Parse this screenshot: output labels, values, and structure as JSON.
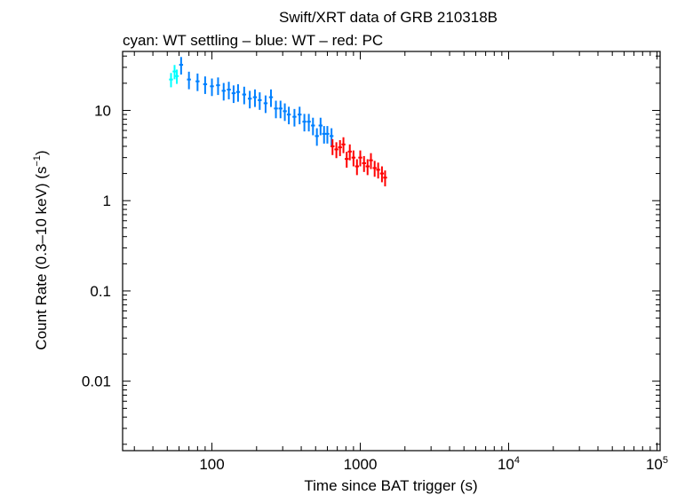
{
  "chart_data": {
    "type": "scatter",
    "title": "Swift/XRT data of GRB 210318B",
    "subtitle": "cyan: WT settling – blue: WT – red: PC",
    "xlabel": "Time since BAT trigger (s)",
    "ylabel_main": "Count Rate (0.3–10 keV) (s",
    "ylabel_sup": "−1",
    "ylabel_tail": ")",
    "xscale": "log",
    "yscale": "log",
    "xlim": [
      25,
      105000
    ],
    "ylim": [
      0.0017,
      45
    ],
    "x_ticks": [
      {
        "value": 100,
        "label": "100",
        "sup": ""
      },
      {
        "value": 1000,
        "label": "1000",
        "sup": ""
      },
      {
        "value": 10000,
        "label": "10",
        "sup": "4"
      },
      {
        "value": 100000,
        "label": "10",
        "sup": "5"
      }
    ],
    "y_ticks": [
      {
        "value": 10,
        "label": "10"
      },
      {
        "value": 1,
        "label": "1"
      },
      {
        "value": 0.1,
        "label": "0.1"
      },
      {
        "value": 0.01,
        "label": "0.01"
      }
    ],
    "grid": false,
    "series": [
      {
        "color": "#00ffff",
        "segments": [
          {
            "x": [
              53,
              56,
              58
            ],
            "y": [
              22,
              27,
              24
            ]
          }
        ],
        "rel_err": 0.18
      },
      {
        "color": "#0080ff",
        "segments": [
          {
            "x": [
              62,
              70,
              80,
              90,
              100,
              110,
              120,
              130,
              140,
              150,
              165,
              180,
              195,
              210,
              230,
              250,
              270,
              290,
              310,
              330,
              360,
              390,
              420,
              450,
              480,
              510,
              540,
              570,
              600,
              640
            ],
            "y": [
              32,
              22,
              21,
              19.5,
              18.5,
              19,
              16.5,
              17,
              15.5,
              16,
              15,
              13.5,
              14,
              13,
              12,
              14,
              10.5,
              10.5,
              9.8,
              9,
              8.5,
              9,
              7.5,
              7.5,
              6.8,
              5.2,
              6.8,
              5.5,
              5.5,
              5.2
            ]
          }
        ],
        "rel_err": 0.22
      },
      {
        "color": "#ff0000",
        "segments": [
          {
            "x": [
              650,
              690,
              730,
              770,
              810,
              850,
              900,
              950,
              1000,
              1060,
              1120,
              1180,
              1250,
              1320,
              1400,
              1470
            ],
            "y": [
              4,
              3.7,
              3.9,
              4.2,
              2.9,
              3.5,
              3.0,
              2.4,
              3.0,
              2.6,
              2.4,
              2.8,
              2.3,
              2.2,
              2.0,
              1.8
            ]
          }
        ],
        "rel_err": 0.2
      }
    ]
  }
}
